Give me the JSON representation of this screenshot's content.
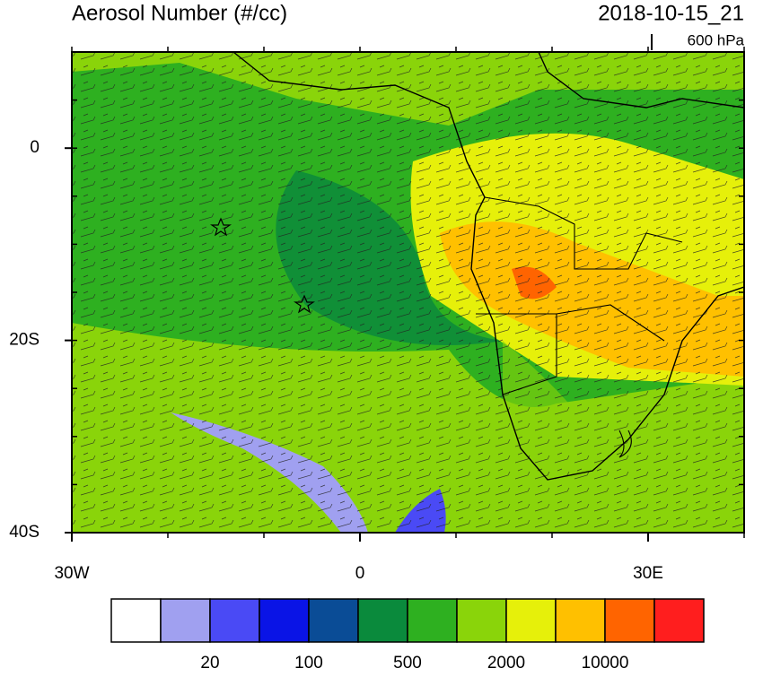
{
  "map": {
    "title": "Aerosol Number (#/cc)",
    "valid_time": "2018-10-15_21",
    "level": "600 hPa",
    "lon_range": [
      -30,
      40
    ],
    "lat_range": [
      -40,
      10
    ],
    "lat_ticks": [
      {
        "value": 0,
        "label": "0"
      },
      {
        "value": -20,
        "label": "20S"
      },
      {
        "value": -40,
        "label": "40S"
      }
    ],
    "lon_ticks": [
      {
        "value": -30,
        "label": "30W"
      },
      {
        "value": 0,
        "label": "0"
      },
      {
        "value": 30,
        "label": "30E"
      }
    ]
  },
  "colorbar": {
    "colors": [
      "#ffffff",
      "#a0a0f0",
      "#4a4af5",
      "#0a14e6",
      "#0a4c96",
      "#0a8a3c",
      "#2eb020",
      "#8ad40a",
      "#e6f00a",
      "#ffc000",
      "#ff6400",
      "#ff1e1e"
    ],
    "labels": [
      20,
      100,
      500,
      2000,
      10000
    ]
  }
}
